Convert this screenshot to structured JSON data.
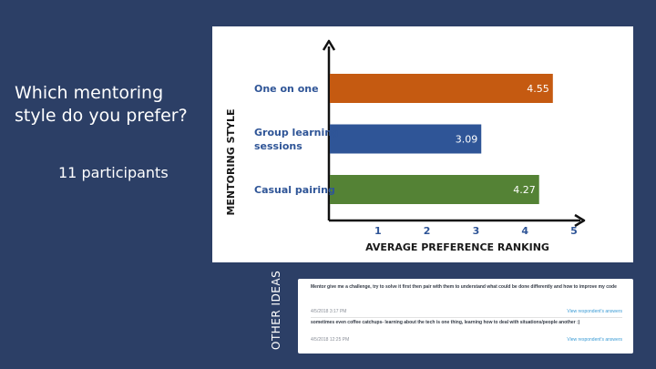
{
  "slide": {
    "title": "Which mentoring style do you prefer?",
    "participants": "11 participants"
  },
  "chart_data": {
    "type": "bar",
    "orientation": "horizontal",
    "ylabel": "MENTORING STYLE",
    "xlabel": "AVERAGE PREFERENCE RANKING",
    "categories": [
      "One on one",
      "Group learning sessions",
      "Casual pairing"
    ],
    "category_lines": [
      [
        "One on one"
      ],
      [
        "Group learning",
        "sessions"
      ],
      [
        "Casual pairing"
      ]
    ],
    "values": [
      4.55,
      3.09,
      4.27
    ],
    "value_labels": [
      "4.55",
      "3.09",
      "4.27"
    ],
    "colors": [
      "#c55a11",
      "#2f5597",
      "#548235"
    ],
    "xticks": [
      1,
      2,
      3,
      4,
      5
    ],
    "xlim": [
      0,
      5
    ],
    "grid": false,
    "legend": "none"
  },
  "other_ideas": {
    "label": "OTHER IDEAS",
    "responses": [
      {
        "text": "Mentor give me a challenge, try to solve it first then pair with them to understand what could be done differently and how to improve my code",
        "timestamp": "4/5/2018 3:17 PM",
        "link": "View respondent's answers"
      },
      {
        "text": "sometimes even coffee catchups- learning about the tech is one thing, learning how to deal with situations/people another :)",
        "timestamp": "4/5/2018 12:25 PM",
        "link": "View respondent's answers"
      }
    ]
  }
}
